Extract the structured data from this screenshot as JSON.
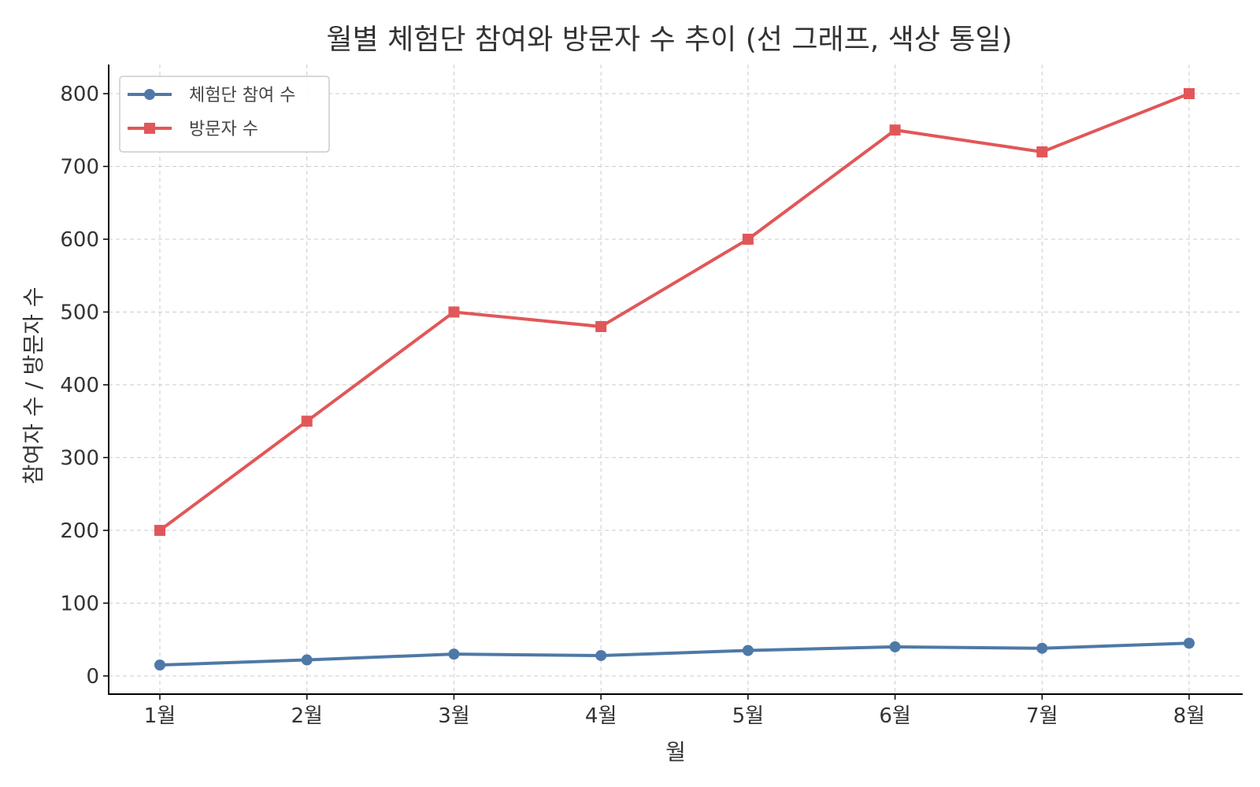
{
  "chart_data": {
    "type": "line",
    "title": "월별 체험단 참여와 방문자 수 추이 (선 그래프, 색상 통일)",
    "xlabel": "월",
    "ylabel": "참여자 수 / 방문자 수",
    "categories": [
      "1월",
      "2월",
      "3월",
      "4월",
      "5월",
      "6월",
      "7월",
      "8월"
    ],
    "ylim": [
      -25,
      840
    ],
    "yticks": [
      0,
      100,
      200,
      300,
      400,
      500,
      600,
      700,
      800
    ],
    "grid": true,
    "legend_position": "top-left",
    "series": [
      {
        "name": "체험단 참여 수",
        "values": [
          15,
          22,
          30,
          28,
          35,
          40,
          38,
          45
        ],
        "color": "#4e79a7",
        "marker": "circle"
      },
      {
        "name": "방문자 수",
        "values": [
          200,
          350,
          500,
          480,
          600,
          750,
          720,
          800
        ],
        "color": "#e15759",
        "marker": "square"
      }
    ]
  }
}
